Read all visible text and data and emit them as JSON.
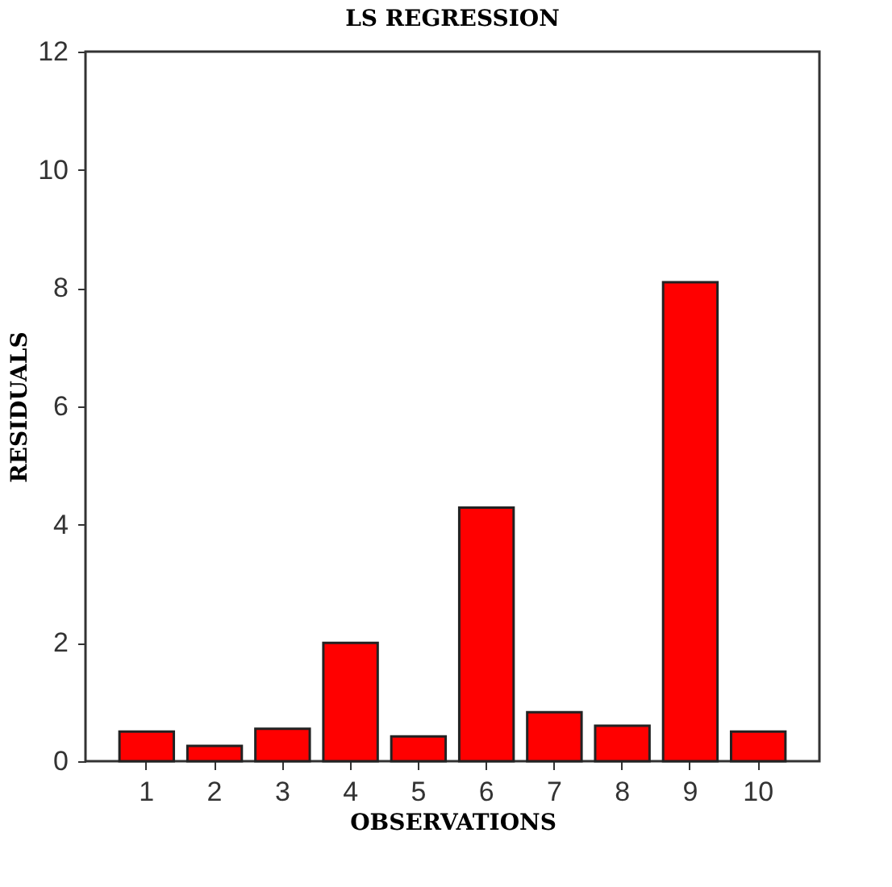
{
  "chart_data": {
    "type": "bar",
    "title": "LS REGRESSION",
    "xlabel": "OBSERVATIONS",
    "ylabel": "RESIDUALS",
    "categories": [
      "1",
      "2",
      "3",
      "4",
      "5",
      "6",
      "7",
      "8",
      "9",
      "10"
    ],
    "values": [
      0.5,
      0.26,
      0.55,
      2.0,
      0.42,
      4.29,
      0.83,
      0.6,
      8.1,
      0.5
    ],
    "color": "#ff0000",
    "ylim": [
      0,
      12
    ],
    "yticks": [
      0,
      2,
      4,
      6,
      8,
      10,
      12
    ],
    "grid": false
  }
}
